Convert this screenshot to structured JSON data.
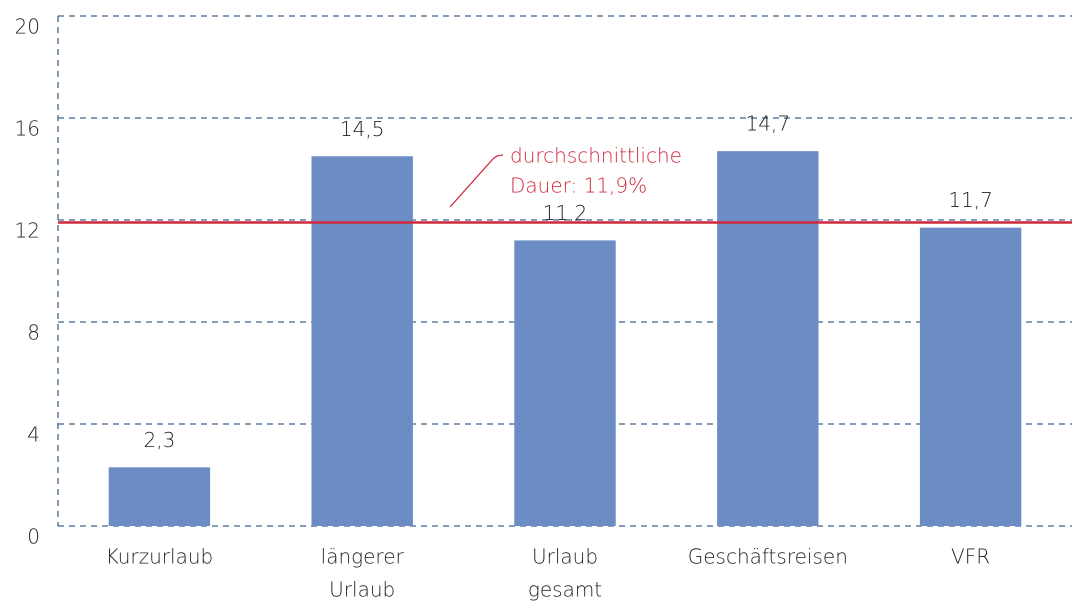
{
  "chart_data": {
    "type": "bar",
    "categories": [
      [
        "Kurzurlaub"
      ],
      [
        "längerer",
        "Urlaub"
      ],
      [
        "Urlaub",
        "gesamt"
      ],
      [
        "Geschäftsreisen"
      ],
      [
        "VFR"
      ]
    ],
    "values": [
      2.3,
      14.5,
      11.2,
      14.7,
      11.7
    ],
    "value_labels": [
      "2,3",
      "14,5",
      "11,2",
      "14,7",
      "11,7"
    ],
    "color": "#6c8cc4",
    "ylim": [
      0,
      20
    ],
    "yticks": [
      0,
      4,
      8,
      12,
      16,
      20
    ],
    "grid": true,
    "reference_line": {
      "value": 11.9,
      "color": "#d0283c",
      "label": [
        "durchschnittliche",
        "Dauer: 11,9%"
      ]
    }
  }
}
